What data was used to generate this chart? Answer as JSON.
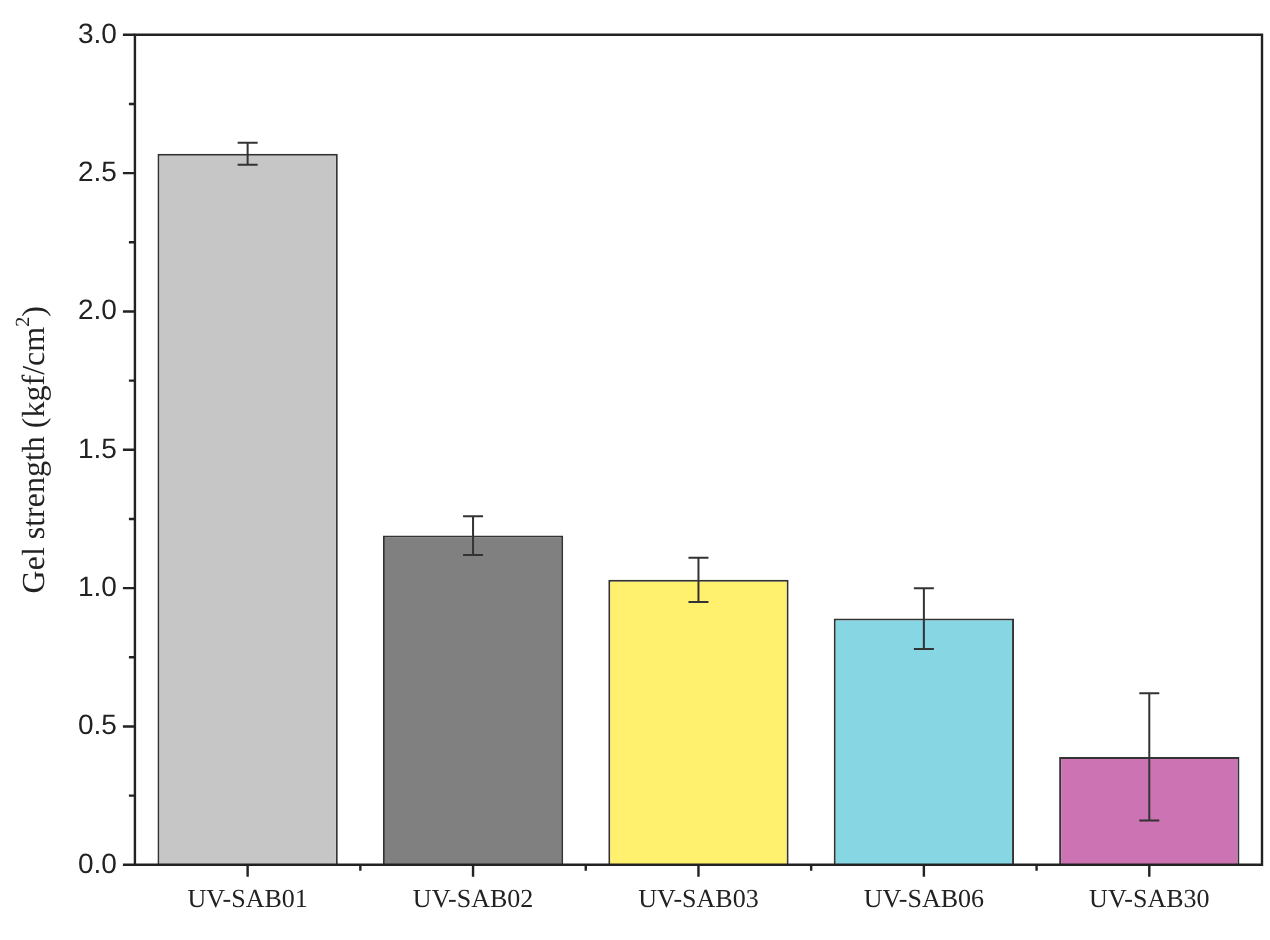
{
  "chart_data": {
    "type": "bar",
    "ylabel": "Gel strength (kgf/cm$^{2}$)",
    "categories": [
      "UV-SAB01",
      "UV-SAB02",
      "UV-SAB03",
      "UV-SAB06",
      "UV-SAB30"
    ],
    "values": [
      2.57,
      1.19,
      1.03,
      0.89,
      0.39
    ],
    "errors": [
      0.04,
      0.07,
      0.08,
      0.11,
      0.23
    ],
    "colors": [
      "#c6c6c6",
      "#808080",
      "#fff06e",
      "#86d6e4",
      "#cc73b3"
    ],
    "ylim": [
      0,
      3
    ],
    "yticks": [
      {
        "value": 0,
        "label": "0.0"
      },
      {
        "value": 0.5,
        "label": "0.5"
      },
      {
        "value": 1,
        "label": "1.0"
      },
      {
        "value": 1.5,
        "label": "1.5"
      },
      {
        "value": 2,
        "label": "2.0"
      },
      {
        "value": 2.5,
        "label": "2.5"
      },
      {
        "value": 3,
        "label": "3.0"
      }
    ],
    "grid": false,
    "legend": false
  }
}
